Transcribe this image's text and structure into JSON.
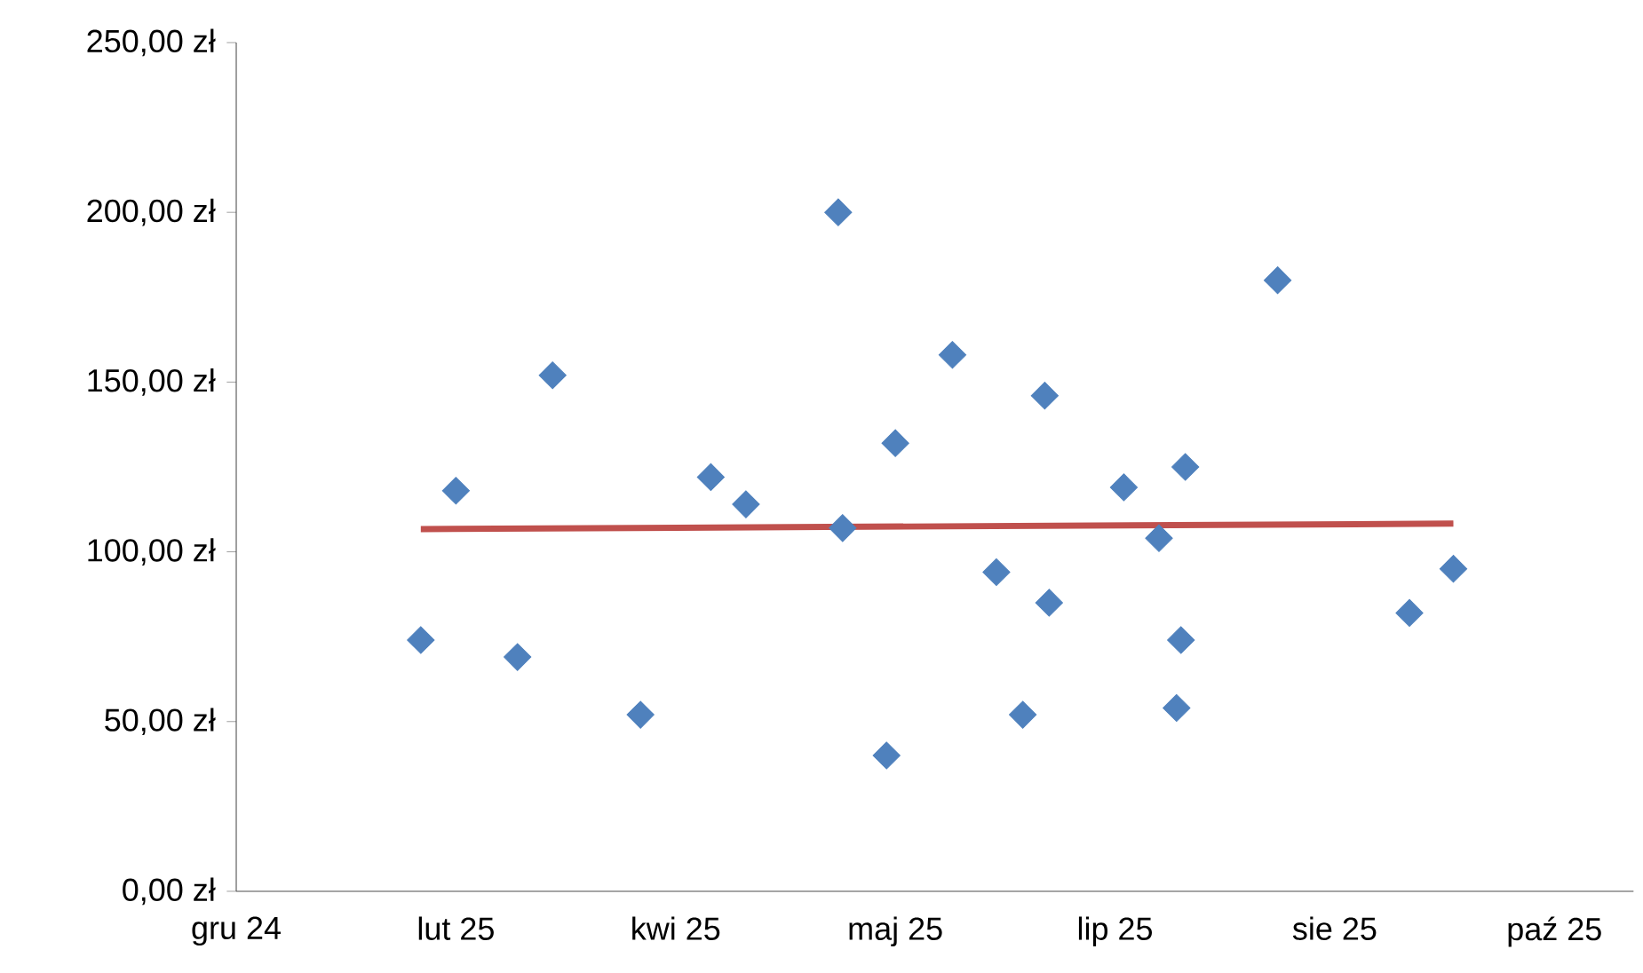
{
  "chart_data": {
    "type": "scatter",
    "xlim": [
      "2024-12-23",
      "2025-11-06"
    ],
    "xticks": [
      {
        "value": "2024-12-23",
        "label": "gru 24"
      },
      {
        "value": "2025-02-11",
        "label": "lut 25"
      },
      {
        "value": "2025-04-02",
        "label": "kwi 25"
      },
      {
        "value": "2025-05-22",
        "label": "maj 25"
      },
      {
        "value": "2025-07-11",
        "label": "lip 25"
      },
      {
        "value": "2025-08-30",
        "label": "sie 25"
      },
      {
        "value": "2025-10-19",
        "label": "paź 25"
      }
    ],
    "ylim": [
      0,
      250
    ],
    "yticks": [
      {
        "value": 0,
        "label": "0,00 zł"
      },
      {
        "value": 50,
        "label": "50,00 zł"
      },
      {
        "value": 100,
        "label": "100,00 zł"
      },
      {
        "value": 150,
        "label": "150,00 zł"
      },
      {
        "value": 200,
        "label": "200,00 zł"
      },
      {
        "value": 250,
        "label": "250,00 zł"
      }
    ],
    "series": [
      {
        "marker": "diamond",
        "color": "#4f81bd",
        "x": [
          "2025-02-03",
          "2025-02-11",
          "2025-02-25",
          "2025-03-05",
          "2025-03-25",
          "2025-04-10",
          "2025-04-18",
          "2025-05-09",
          "2025-05-10",
          "2025-05-20",
          "2025-05-22",
          "2025-06-04",
          "2025-06-14",
          "2025-06-20",
          "2025-06-25",
          "2025-06-26",
          "2025-07-13",
          "2025-07-21",
          "2025-07-25",
          "2025-07-26",
          "2025-07-27",
          "2025-08-17",
          "2025-09-16",
          "2025-09-26"
        ],
        "values": [
          74,
          118,
          69,
          152,
          52,
          122,
          114,
          200,
          107,
          40,
          132,
          158,
          94,
          52,
          146,
          85,
          119,
          104,
          54,
          74,
          125,
          180,
          82,
          95
        ]
      },
      {
        "type": "line",
        "color": "#c0504d",
        "x": [
          "2025-02-03",
          "2025-09-26"
        ],
        "values": [
          106.7,
          108.3
        ]
      }
    ]
  }
}
